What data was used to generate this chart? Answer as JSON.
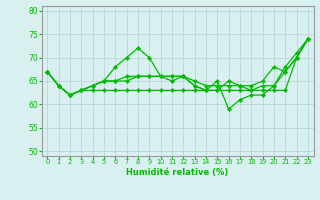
{
  "title": "",
  "xlabel": "Humidité relative (%)",
  "ylabel": "",
  "background_color": "#d8f0f0",
  "grid_color": "#b8d8d8",
  "line_color": "#00bb00",
  "xlim": [
    -0.5,
    23.5
  ],
  "ylim": [
    49,
    81
  ],
  "yticks": [
    50,
    55,
    60,
    65,
    70,
    75,
    80
  ],
  "xticks": [
    0,
    1,
    2,
    3,
    4,
    5,
    6,
    7,
    8,
    9,
    10,
    11,
    12,
    13,
    14,
    15,
    16,
    17,
    18,
    19,
    20,
    21,
    22,
    23
  ],
  "series": [
    [
      67,
      64,
      62,
      63,
      64,
      65,
      68,
      70,
      72,
      70,
      66,
      65,
      66,
      64,
      63,
      65,
      59,
      61,
      62,
      62,
      64,
      67,
      70,
      74
    ],
    [
      67,
      64,
      62,
      63,
      64,
      65,
      65,
      65,
      66,
      66,
      66,
      66,
      66,
      65,
      64,
      64,
      64,
      64,
      64,
      65,
      68,
      67,
      70,
      74
    ],
    [
      67,
      64,
      62,
      63,
      63,
      63,
      63,
      63,
      63,
      63,
      63,
      63,
      63,
      63,
      63,
      63,
      63,
      63,
      63,
      63,
      63,
      63,
      70,
      74
    ],
    [
      67,
      64,
      62,
      63,
      64,
      65,
      65,
      66,
      66,
      66,
      66,
      66,
      66,
      64,
      63,
      63,
      65,
      64,
      63,
      64,
      64,
      68,
      71,
      74
    ]
  ]
}
